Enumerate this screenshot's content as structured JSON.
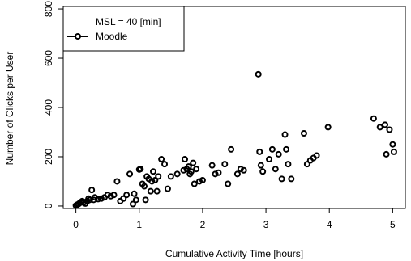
{
  "chart_data": {
    "type": "scatter",
    "title": "",
    "xlabel": "Cumulative Activity Time [hours]",
    "ylabel": "Number of Clicks per User",
    "xlim": [
      -0.2,
      5.2
    ],
    "ylim": [
      -10,
      810
    ],
    "xticks": [
      0,
      1,
      2,
      3,
      4,
      5
    ],
    "yticks": [
      0,
      200,
      400,
      600,
      800
    ],
    "xtick_labels": [
      "0",
      "1",
      "2",
      "3",
      "4",
      "5"
    ],
    "ytick_labels": [
      "0",
      "200",
      "400",
      "600",
      "800"
    ],
    "grid": false,
    "legend": {
      "placement": "top-left",
      "title": "MSL = 40  [min]",
      "entries": [
        "Moodle"
      ]
    },
    "series": [
      {
        "name": "Moodle",
        "color": "#000000",
        "marker": "open-circle",
        "points": [
          [
            0.0,
            2
          ],
          [
            0.02,
            5
          ],
          [
            0.04,
            8
          ],
          [
            0.06,
            12
          ],
          [
            0.08,
            16
          ],
          [
            0.1,
            20
          ],
          [
            0.12,
            14
          ],
          [
            0.15,
            10
          ],
          [
            0.18,
            20
          ],
          [
            0.2,
            30
          ],
          [
            0.22,
            25
          ],
          [
            0.25,
            65
          ],
          [
            0.28,
            25
          ],
          [
            0.3,
            35
          ],
          [
            0.35,
            28
          ],
          [
            0.4,
            30
          ],
          [
            0.45,
            35
          ],
          [
            0.5,
            45
          ],
          [
            0.55,
            40
          ],
          [
            0.6,
            45
          ],
          [
            0.65,
            100
          ],
          [
            0.7,
            20
          ],
          [
            0.75,
            30
          ],
          [
            0.8,
            45
          ],
          [
            0.85,
            130
          ],
          [
            0.9,
            8
          ],
          [
            0.92,
            50
          ],
          [
            0.95,
            25
          ],
          [
            1.0,
            148
          ],
          [
            1.02,
            150
          ],
          [
            1.05,
            90
          ],
          [
            1.08,
            80
          ],
          [
            1.1,
            25
          ],
          [
            1.12,
            120
          ],
          [
            1.15,
            110
          ],
          [
            1.18,
            60
          ],
          [
            1.2,
            100
          ],
          [
            1.22,
            140
          ],
          [
            1.25,
            105
          ],
          [
            1.28,
            60
          ],
          [
            1.3,
            120
          ],
          [
            1.35,
            190
          ],
          [
            1.4,
            170
          ],
          [
            1.45,
            70
          ],
          [
            1.5,
            120
          ],
          [
            1.6,
            130
          ],
          [
            1.7,
            145
          ],
          [
            1.72,
            190
          ],
          [
            1.75,
            150
          ],
          [
            1.78,
            160
          ],
          [
            1.8,
            130
          ],
          [
            1.82,
            140
          ],
          [
            1.85,
            175
          ],
          [
            1.87,
            90
          ],
          [
            1.9,
            150
          ],
          [
            1.95,
            100
          ],
          [
            2.0,
            105
          ],
          [
            2.15,
            165
          ],
          [
            2.2,
            130
          ],
          [
            2.25,
            135
          ],
          [
            2.35,
            170
          ],
          [
            2.4,
            90
          ],
          [
            2.45,
            230
          ],
          [
            2.55,
            130
          ],
          [
            2.6,
            150
          ],
          [
            2.65,
            145
          ],
          [
            2.88,
            535
          ],
          [
            2.9,
            220
          ],
          [
            2.92,
            165
          ],
          [
            2.95,
            140
          ],
          [
            3.05,
            190
          ],
          [
            3.1,
            230
          ],
          [
            3.15,
            150
          ],
          [
            3.2,
            210
          ],
          [
            3.25,
            110
          ],
          [
            3.3,
            290
          ],
          [
            3.32,
            230
          ],
          [
            3.35,
            170
          ],
          [
            3.4,
            110
          ],
          [
            3.6,
            295
          ],
          [
            3.65,
            170
          ],
          [
            3.7,
            185
          ],
          [
            3.75,
            195
          ],
          [
            3.8,
            205
          ],
          [
            3.98,
            320
          ],
          [
            4.7,
            355
          ],
          [
            4.8,
            320
          ],
          [
            4.88,
            330
          ],
          [
            4.9,
            210
          ],
          [
            4.95,
            310
          ],
          [
            5.0,
            250
          ],
          [
            5.02,
            220
          ]
        ]
      }
    ]
  }
}
